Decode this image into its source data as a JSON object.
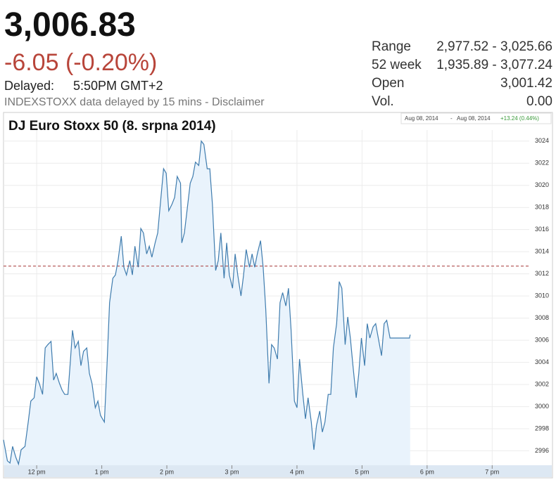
{
  "quote": {
    "price": "3,006.83",
    "change": "-6.05 (-0.20%)",
    "delayed_label": "Delayed:",
    "delayed_time": "5:50PM GMT+2",
    "note": "INDEXSTOXX data delayed by 15 mins - Disclaimer",
    "stats": [
      {
        "label": "Range",
        "value": "2,977.52 - 3,025.66"
      },
      {
        "label": "52 week",
        "value": "1,935.89 - 3,077.24"
      },
      {
        "label": "Open",
        "value": "3,001.42"
      },
      {
        "label": "Vol.",
        "value": "0.00"
      }
    ]
  },
  "chart_data": {
    "type": "line",
    "title": "DJ Euro Stoxx 50 (8. srpna 2014)",
    "range_start": "Aug 08, 2014",
    "range_sep": "-",
    "range_end": "Aug 08, 2014",
    "range_change": "+13.24 (0.44%)",
    "color": "#3f7cae",
    "fill": "#e9f3fc",
    "reference_line": 3012.7,
    "reference_color": "#a83a3a",
    "grid": true,
    "xlim": [
      11.49,
      19.57
    ],
    "ylim": [
      2994.7,
      3025
    ],
    "xticks": [
      {
        "value": 12,
        "label": "12 pm"
      },
      {
        "value": 13,
        "label": "1 pm"
      },
      {
        "value": 14,
        "label": "2 pm"
      },
      {
        "value": 15,
        "label": "3 pm"
      },
      {
        "value": 16,
        "label": "4 pm"
      },
      {
        "value": 17,
        "label": "5 pm"
      },
      {
        "value": 18,
        "label": "6 pm"
      },
      {
        "value": 19,
        "label": "7 pm"
      }
    ],
    "yticks": [
      2996,
      2998,
      3000,
      3002,
      3004,
      3006,
      3008,
      3010,
      3012,
      3014,
      3016,
      3018,
      3020,
      3022,
      3024
    ],
    "x": [
      11.49,
      11.55,
      11.59,
      11.63,
      11.68,
      11.72,
      11.76,
      11.82,
      11.87,
      11.91,
      11.96,
      12.0,
      12.04,
      12.09,
      12.13,
      12.17,
      12.22,
      12.26,
      12.3,
      12.35,
      12.39,
      12.43,
      12.48,
      12.52,
      12.55,
      12.59,
      12.64,
      12.68,
      12.72,
      12.77,
      12.81,
      12.85,
      12.9,
      12.94,
      12.98,
      13.04,
      13.08,
      13.12,
      13.17,
      13.21,
      13.25,
      13.3,
      13.34,
      13.38,
      13.43,
      13.47,
      13.51,
      13.56,
      13.6,
      13.64,
      13.69,
      13.73,
      13.77,
      13.82,
      13.86,
      13.9,
      13.95,
      13.99,
      14.03,
      14.08,
      14.12,
      14.16,
      14.21,
      14.23,
      14.27,
      14.31,
      14.36,
      14.4,
      14.44,
      14.49,
      14.53,
      14.57,
      14.62,
      14.66,
      14.7,
      14.75,
      14.79,
      14.83,
      14.88,
      14.92,
      14.96,
      15.01,
      15.05,
      15.09,
      15.14,
      15.18,
      15.22,
      15.27,
      15.31,
      15.35,
      15.39,
      15.44,
      15.48,
      15.52,
      15.57,
      15.61,
      15.65,
      15.7,
      15.74,
      15.78,
      15.83,
      15.87,
      15.91,
      15.96,
      16.0,
      16.04,
      16.09,
      16.13,
      16.17,
      16.22,
      16.26,
      16.3,
      16.35,
      16.39,
      16.43,
      16.48,
      16.52,
      16.56,
      16.61,
      16.65,
      16.69,
      16.74,
      16.78,
      16.82,
      16.86,
      16.91,
      16.95,
      16.99,
      17.04,
      17.08,
      17.12,
      17.17,
      17.21,
      17.25,
      17.3,
      17.34,
      17.38,
      17.43,
      17.47,
      17.73,
      17.74
    ],
    "values": [
      2997.0,
      2995.1,
      2994.9,
      2996.4,
      2995.4,
      2994.8,
      2996.1,
      2996.4,
      2998.6,
      3000.5,
      3000.8,
      3002.7,
      3002.1,
      3001.1,
      3005.3,
      3005.6,
      3005.9,
      3002.4,
      3003.0,
      3002.1,
      3001.5,
      3001.1,
      3001.1,
      3004.3,
      3006.9,
      3005.3,
      3005.9,
      3003.7,
      3005.0,
      3005.3,
      3003.0,
      3002.1,
      2999.9,
      3000.5,
      2999.2,
      2998.6,
      3003.7,
      3009.4,
      3011.6,
      3011.9,
      3013.2,
      3015.4,
      3012.6,
      3011.9,
      3013.2,
      3011.9,
      3014.5,
      3012.6,
      3016.1,
      3015.7,
      3013.8,
      3014.5,
      3013.5,
      3014.8,
      3015.7,
      3018.3,
      3021.5,
      3021.1,
      3017.7,
      3018.3,
      3018.9,
      3020.8,
      3020.2,
      3014.8,
      3015.7,
      3017.7,
      3020.2,
      3020.8,
      3022.1,
      3021.8,
      3024.0,
      3023.7,
      3021.5,
      3021.5,
      3018.3,
      3012.3,
      3013.2,
      3015.7,
      3011.6,
      3014.8,
      3011.9,
      3010.7,
      3013.8,
      3011.9,
      3010.0,
      3011.9,
      3014.2,
      3012.6,
      3013.8,
      3012.6,
      3013.8,
      3015.0,
      3012.6,
      3008.8,
      3002.1,
      3005.6,
      3005.3,
      3004.3,
      3009.4,
      3010.3,
      3009.1,
      3010.7,
      3006.9,
      3000.5,
      2999.9,
      3004.3,
      3001.1,
      2998.9,
      3000.8,
      2998.6,
      2996.1,
      2998.3,
      2999.6,
      2997.7,
      2998.6,
      3001.1,
      3001.1,
      3005.3,
      3007.5,
      3011.3,
      3010.7,
      3005.6,
      3008.1,
      3006.2,
      3003.7,
      3000.8,
      3003.0,
      3006.2,
      3003.7,
      3007.5,
      3006.2,
      3007.2,
      3007.5,
      3006.2,
      3004.6,
      3007.5,
      3007.8,
      3006.2,
      3006.2,
      3006.2,
      3006.5
    ]
  }
}
